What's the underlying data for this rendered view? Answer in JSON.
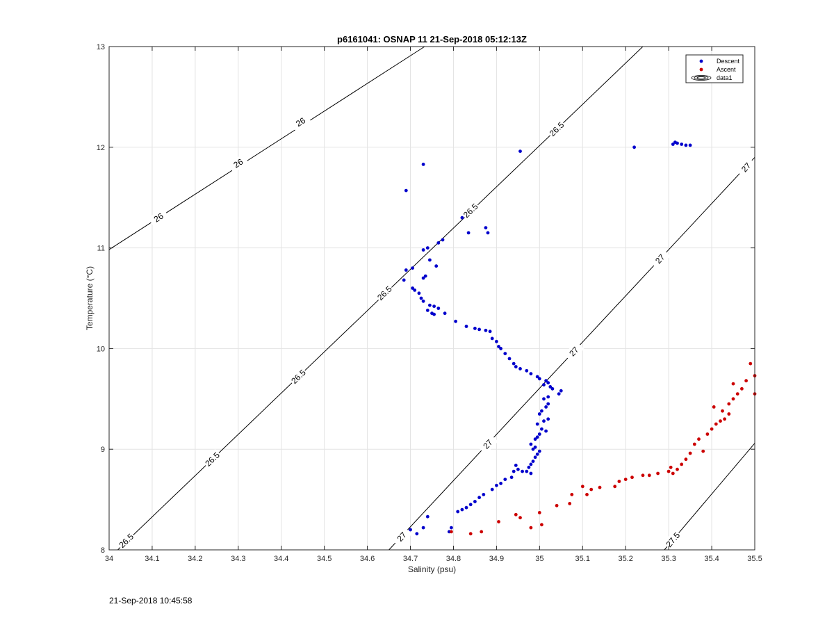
{
  "chart_data": {
    "type": "scatter",
    "title": "p6161041: OSNAP 11 21-Sep-2018 05:12:13Z",
    "xlabel": "Salinity (psu)",
    "ylabel": "Temperature (°C)",
    "xlim": [
      34,
      35.5
    ],
    "ylim": [
      8,
      13
    ],
    "xticks": [
      "34",
      "34.1",
      "34.2",
      "34.3",
      "34.4",
      "34.5",
      "34.6",
      "34.7",
      "34.8",
      "34.9",
      "35",
      "35.1",
      "35.2",
      "35.3",
      "35.4",
      "35.5"
    ],
    "yticks": [
      "8",
      "9",
      "10",
      "11",
      "12",
      "13"
    ],
    "grid": true,
    "legend_position": "top-right",
    "legend": [
      "Descent",
      "Ascent",
      "data1"
    ],
    "series": [
      {
        "name": "Descent",
        "color": "#0000cc",
        "points": [
          [
            34.73,
            11.83
          ],
          [
            34.955,
            11.96
          ],
          [
            34.69,
            11.57
          ],
          [
            35.22,
            12.0
          ],
          [
            35.31,
            12.03
          ],
          [
            35.315,
            12.05
          ],
          [
            35.32,
            12.04
          ],
          [
            35.33,
            12.03
          ],
          [
            35.34,
            12.02
          ],
          [
            35.35,
            12.02
          ],
          [
            34.82,
            11.3
          ],
          [
            34.835,
            11.15
          ],
          [
            34.875,
            11.2
          ],
          [
            34.88,
            11.15
          ],
          [
            34.775,
            11.08
          ],
          [
            34.765,
            11.05
          ],
          [
            34.74,
            11.0
          ],
          [
            34.73,
            10.98
          ],
          [
            34.705,
            10.8
          ],
          [
            34.69,
            10.78
          ],
          [
            34.685,
            10.68
          ],
          [
            34.705,
            10.6
          ],
          [
            34.71,
            10.58
          ],
          [
            34.72,
            10.55
          ],
          [
            34.745,
            10.88
          ],
          [
            34.76,
            10.82
          ],
          [
            34.735,
            10.72
          ],
          [
            34.73,
            10.7
          ],
          [
            34.725,
            10.5
          ],
          [
            34.73,
            10.47
          ],
          [
            34.745,
            10.43
          ],
          [
            34.755,
            10.42
          ],
          [
            34.765,
            10.4
          ],
          [
            34.74,
            10.38
          ],
          [
            34.75,
            10.35
          ],
          [
            34.755,
            10.34
          ],
          [
            34.78,
            10.35
          ],
          [
            34.805,
            10.27
          ],
          [
            34.83,
            10.22
          ],
          [
            34.85,
            10.2
          ],
          [
            34.86,
            10.19
          ],
          [
            34.875,
            10.18
          ],
          [
            34.885,
            10.17
          ],
          [
            34.89,
            10.1
          ],
          [
            34.9,
            10.07
          ],
          [
            34.905,
            10.02
          ],
          [
            34.91,
            10.0
          ],
          [
            34.92,
            9.95
          ],
          [
            34.93,
            9.9
          ],
          [
            34.94,
            9.85
          ],
          [
            34.945,
            9.82
          ],
          [
            34.955,
            9.8
          ],
          [
            34.97,
            9.78
          ],
          [
            34.98,
            9.75
          ],
          [
            34.995,
            9.72
          ],
          [
            35.0,
            9.7
          ],
          [
            35.015,
            9.68
          ],
          [
            35.02,
            9.66
          ],
          [
            35.01,
            9.64
          ],
          [
            35.025,
            9.62
          ],
          [
            35.03,
            9.6
          ],
          [
            35.05,
            9.58
          ],
          [
            35.045,
            9.55
          ],
          [
            35.02,
            9.52
          ],
          [
            35.01,
            9.5
          ],
          [
            35.02,
            9.45
          ],
          [
            35.015,
            9.42
          ],
          [
            35.005,
            9.38
          ],
          [
            35.0,
            9.35
          ],
          [
            35.02,
            9.3
          ],
          [
            35.01,
            9.28
          ],
          [
            34.995,
            9.25
          ],
          [
            35.005,
            9.2
          ],
          [
            35.015,
            9.18
          ],
          [
            35.0,
            9.15
          ],
          [
            34.995,
            9.12
          ],
          [
            34.99,
            9.1
          ],
          [
            34.98,
            9.05
          ],
          [
            34.99,
            9.02
          ],
          [
            34.985,
            9.0
          ],
          [
            35.0,
            8.98
          ],
          [
            34.995,
            8.95
          ],
          [
            34.99,
            8.92
          ],
          [
            34.985,
            8.88
          ],
          [
            34.98,
            8.85
          ],
          [
            34.975,
            8.82
          ],
          [
            34.97,
            8.78
          ],
          [
            34.98,
            8.76
          ],
          [
            34.96,
            8.78
          ],
          [
            34.95,
            8.8
          ],
          [
            34.945,
            8.84
          ],
          [
            34.94,
            8.78
          ],
          [
            34.935,
            8.72
          ],
          [
            34.92,
            8.7
          ],
          [
            34.91,
            8.66
          ],
          [
            34.9,
            8.64
          ],
          [
            34.89,
            8.6
          ],
          [
            34.87,
            8.55
          ],
          [
            34.86,
            8.52
          ],
          [
            34.85,
            8.48
          ],
          [
            34.84,
            8.45
          ],
          [
            34.83,
            8.42
          ],
          [
            34.82,
            8.4
          ],
          [
            34.81,
            8.38
          ],
          [
            34.74,
            8.33
          ],
          [
            34.73,
            8.22
          ],
          [
            34.715,
            8.16
          ],
          [
            34.7,
            8.2
          ],
          [
            34.795,
            8.22
          ],
          [
            34.79,
            8.18
          ]
        ]
      },
      {
        "name": "Ascent",
        "color": "#cc0000",
        "points": [
          [
            34.795,
            8.18
          ],
          [
            34.84,
            8.16
          ],
          [
            34.865,
            8.18
          ],
          [
            34.905,
            8.28
          ],
          [
            34.945,
            8.35
          ],
          [
            34.955,
            8.32
          ],
          [
            34.98,
            8.22
          ],
          [
            35.0,
            8.37
          ],
          [
            35.005,
            8.25
          ],
          [
            35.04,
            8.44
          ],
          [
            35.07,
            8.46
          ],
          [
            35.075,
            8.55
          ],
          [
            35.1,
            8.63
          ],
          [
            35.11,
            8.55
          ],
          [
            35.12,
            8.6
          ],
          [
            35.14,
            8.62
          ],
          [
            35.175,
            8.63
          ],
          [
            35.185,
            8.68
          ],
          [
            35.2,
            8.7
          ],
          [
            35.215,
            8.72
          ],
          [
            35.24,
            8.74
          ],
          [
            35.255,
            8.74
          ],
          [
            35.275,
            8.76
          ],
          [
            35.3,
            8.78
          ],
          [
            35.305,
            8.82
          ],
          [
            35.31,
            8.76
          ],
          [
            35.32,
            8.8
          ],
          [
            35.33,
            8.85
          ],
          [
            35.34,
            8.9
          ],
          [
            35.35,
            8.96
          ],
          [
            35.36,
            9.05
          ],
          [
            35.37,
            9.1
          ],
          [
            35.38,
            8.98
          ],
          [
            35.39,
            9.15
          ],
          [
            35.4,
            9.2
          ],
          [
            35.41,
            9.25
          ],
          [
            35.42,
            9.28
          ],
          [
            35.43,
            9.3
          ],
          [
            35.44,
            9.35
          ],
          [
            35.425,
            9.38
          ],
          [
            35.405,
            9.42
          ],
          [
            35.44,
            9.45
          ],
          [
            35.45,
            9.5
          ],
          [
            35.46,
            9.55
          ],
          [
            35.47,
            9.6
          ],
          [
            35.45,
            9.65
          ],
          [
            35.48,
            9.68
          ],
          [
            35.49,
            9.85
          ],
          [
            35.5,
            9.73
          ],
          [
            35.5,
            9.55
          ]
        ]
      }
    ],
    "contours": [
      {
        "label": "26",
        "x1": 34.0,
        "y1": 10.983,
        "x2": 34.733,
        "y2": 13.0,
        "labels_at": [
          [
            34.3,
            11.84
          ],
          [
            34.115,
            11.3
          ],
          [
            34.445,
            12.25
          ]
        ]
      },
      {
        "label": "26.5",
        "x1": 34.02,
        "y1": 8.0,
        "x2": 35.24,
        "y2": 13.0,
        "labels_at": [
          [
            34.04,
            8.09
          ],
          [
            34.24,
            8.9
          ],
          [
            34.44,
            9.72
          ],
          [
            34.64,
            10.55
          ],
          [
            34.84,
            11.37
          ],
          [
            35.04,
            12.18
          ]
        ]
      },
      {
        "label": "27",
        "x1": 34.65,
        "y1": 8.0,
        "x2": 35.5,
        "y2": 11.9,
        "labels_at": [
          [
            34.68,
            8.13
          ],
          [
            34.88,
            9.05
          ],
          [
            35.08,
            9.97
          ],
          [
            35.28,
            10.89
          ],
          [
            35.48,
            11.8
          ]
        ]
      },
      {
        "label": "27.5",
        "x1": 35.29,
        "y1": 8.0,
        "x2": 35.5,
        "y2": 9.06,
        "labels_at": [
          [
            35.31,
            8.1
          ]
        ]
      }
    ],
    "contour_labels": [
      "26",
      "26",
      "26",
      "26.5",
      "26.5",
      "26.5",
      "26.5",
      "26.5",
      "26.5",
      "27",
      "27",
      "27",
      "27",
      "27",
      "27.5"
    ]
  },
  "footer": {
    "timestamp": "21-Sep-2018 10:45:58"
  }
}
